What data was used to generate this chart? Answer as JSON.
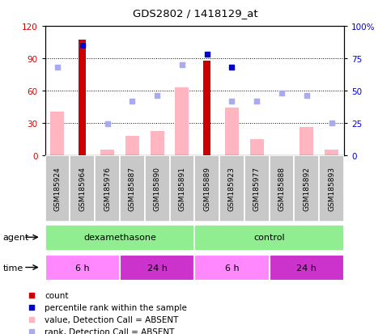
{
  "title": "GDS2802 / 1418129_at",
  "samples": [
    "GSM185924",
    "GSM185964",
    "GSM185976",
    "GSM185887",
    "GSM185890",
    "GSM185891",
    "GSM185889",
    "GSM185923",
    "GSM185977",
    "GSM185888",
    "GSM185892",
    "GSM185893"
  ],
  "count_values": [
    0,
    107,
    0,
    0,
    0,
    0,
    88,
    0,
    0,
    0,
    0,
    0
  ],
  "count_present": [
    false,
    true,
    false,
    false,
    false,
    false,
    true,
    false,
    false,
    false,
    false,
    false
  ],
  "value_absent": [
    40,
    0,
    5,
    18,
    22,
    63,
    0,
    44,
    15,
    0,
    26,
    5
  ],
  "rank_absent": [
    68,
    85,
    24,
    42,
    46,
    70,
    0,
    42,
    42,
    48,
    46,
    25
  ],
  "percentile_rank": [
    null,
    85,
    null,
    null,
    null,
    null,
    78,
    68,
    null,
    null,
    null,
    null
  ],
  "percentile_present": [
    false,
    true,
    false,
    false,
    false,
    false,
    true,
    true,
    false,
    false,
    false,
    false
  ],
  "agent_groups": [
    {
      "label": "dexamethasone",
      "start": 0,
      "end": 5,
      "color": "#90EE90"
    },
    {
      "label": "control",
      "start": 6,
      "end": 11,
      "color": "#90EE90"
    }
  ],
  "time_groups": [
    {
      "label": "6 h",
      "start": 0,
      "end": 2,
      "color": "#FF88FF"
    },
    {
      "label": "24 h",
      "start": 3,
      "end": 5,
      "color": "#CC33CC"
    },
    {
      "label": "6 h",
      "start": 6,
      "end": 8,
      "color": "#FF88FF"
    },
    {
      "label": "24 h",
      "start": 9,
      "end": 11,
      "color": "#CC33CC"
    }
  ],
  "ylim_left": [
    0,
    120
  ],
  "ylim_right": [
    0,
    100
  ],
  "yticks_left": [
    0,
    30,
    60,
    90,
    120
  ],
  "yticks_right": [
    0,
    25,
    50,
    75,
    100
  ],
  "ylabel_left_color": "#CC0000",
  "ylabel_right_color": "#0000CC",
  "bar_color": "#CC0000",
  "bar_absent_color": "#FFB6C1",
  "rank_absent_color": "#AAAAEE",
  "percentile_color": "#0000CC",
  "grid_color": "#000000",
  "sample_box_color": "#C8C8C8",
  "legend_items": [
    {
      "color": "#CC0000",
      "marker": "s",
      "label": "count"
    },
    {
      "color": "#0000CC",
      "marker": "s",
      "label": "percentile rank within the sample"
    },
    {
      "color": "#FFB6C1",
      "marker": "s",
      "label": "value, Detection Call = ABSENT"
    },
    {
      "color": "#AAAAEE",
      "marker": "s",
      "label": "rank, Detection Call = ABSENT"
    }
  ]
}
